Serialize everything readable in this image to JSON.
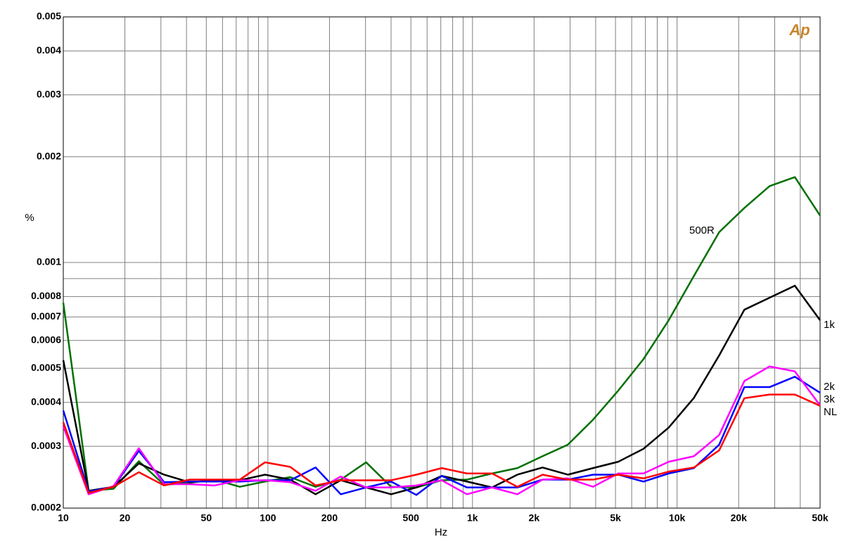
{
  "chart_data": {
    "type": "line",
    "logo": "Ap",
    "ylabel": "%",
    "xlabel": "Hz",
    "annotation": "500R",
    "log_x": true,
    "log_y": true,
    "grid": true,
    "xlim": [
      10,
      50000
    ],
    "ylim": [
      0.0002,
      0.005
    ],
    "xticks": [
      10,
      20,
      {
        "value": 30,
        "label": null
      },
      {
        "value": 40,
        "label": null
      },
      50,
      {
        "value": 60,
        "label": null
      },
      {
        "value": 70,
        "label": null
      },
      {
        "value": 80,
        "label": null
      },
      {
        "value": 90,
        "label": null
      },
      100,
      200,
      {
        "value": 300,
        "label": null
      },
      {
        "value": 400,
        "label": null
      },
      500,
      {
        "value": 600,
        "label": null
      },
      {
        "value": 700,
        "label": null
      },
      {
        "value": 800,
        "label": null
      },
      {
        "value": 900,
        "label": null
      },
      {
        "value": 1000,
        "label": "1k"
      },
      {
        "value": 2000,
        "label": "2k"
      },
      {
        "value": 3000,
        "label": null
      },
      {
        "value": 4000,
        "label": null
      },
      {
        "value": 5000,
        "label": "5k"
      },
      {
        "value": 6000,
        "label": null
      },
      {
        "value": 7000,
        "label": null
      },
      {
        "value": 8000,
        "label": null
      },
      {
        "value": 9000,
        "label": null
      },
      {
        "value": 10000,
        "label": "10k"
      },
      {
        "value": 20000,
        "label": "20k"
      },
      {
        "value": 30000,
        "label": null
      },
      {
        "value": 40000,
        "label": null
      },
      {
        "value": 50000,
        "label": "50k"
      }
    ],
    "yticks": [
      0.0002,
      0.0003,
      0.0004,
      0.0005,
      0.0006,
      0.0007,
      0.0008,
      {
        "value": 0.0009,
        "label": null
      },
      0.001,
      0.002,
      0.003,
      0.004,
      0.005
    ],
    "x": [
      10,
      13.3,
      17.6,
      23.4,
      31.1,
      41.3,
      54.9,
      72.9,
      96.8,
      128.6,
      171,
      227,
      302,
      400,
      532,
      707,
      939,
      1247,
      1657,
      2200,
      2924,
      3884,
      5158,
      6852,
      9100,
      12090,
      16060,
      21330,
      28330,
      37640,
      50000
    ],
    "series": [
      {
        "name": "500R",
        "color": "#007000",
        "values": [
          0.000768,
          0.000224,
          0.000227,
          0.000272,
          0.000233,
          0.000236,
          0.000241,
          0.00023,
          0.000238,
          0.000245,
          0.00023,
          0.000241,
          0.00027,
          0.00023,
          0.000229,
          0.00024,
          0.000241,
          0.000251,
          0.00026,
          0.000281,
          0.000303,
          0.000357,
          0.000432,
          0.000531,
          0.000685,
          0.000916,
          0.00122,
          0.00143,
          0.00165,
          0.00175,
          0.00136
        ]
      },
      {
        "name": "1k",
        "color": "#000000",
        "values": [
          0.000527,
          0.000224,
          0.00023,
          0.000268,
          0.000249,
          0.000237,
          0.00024,
          0.00024,
          0.000249,
          0.000241,
          0.000219,
          0.00024,
          0.000229,
          0.000219,
          0.000229,
          0.000247,
          0.000238,
          0.000229,
          0.000249,
          0.000261,
          0.000249,
          0.00026,
          0.000271,
          0.000295,
          0.000339,
          0.000412,
          0.000544,
          0.000734,
          0.000794,
          0.000859,
          0.000685
        ]
      },
      {
        "name": "2k",
        "color": "#0000ff",
        "values": [
          0.000379,
          0.000223,
          0.00023,
          0.000291,
          0.000237,
          0.000238,
          0.000238,
          0.000238,
          0.00024,
          0.00024,
          0.000261,
          0.000219,
          0.000229,
          0.000238,
          0.000218,
          0.000247,
          0.000229,
          0.000229,
          0.000229,
          0.000241,
          0.000241,
          0.000249,
          0.000249,
          0.000238,
          0.000251,
          0.00026,
          0.000303,
          0.000442,
          0.000442,
          0.000473,
          0.000426
        ]
      },
      {
        "name": "3k",
        "color": "#ff00ff",
        "values": [
          0.000342,
          0.000219,
          0.000231,
          0.000296,
          0.000234,
          0.000234,
          0.000232,
          0.00024,
          0.00024,
          0.000237,
          0.000224,
          0.000246,
          0.000229,
          0.000229,
          0.000232,
          0.00024,
          0.000219,
          0.000229,
          0.000219,
          0.000241,
          0.000243,
          0.00023,
          0.000251,
          0.000251,
          0.000271,
          0.000281,
          0.000323,
          0.00046,
          0.000506,
          0.00049,
          0.000392
        ]
      },
      {
        "name": "NL",
        "color": "#ff0000",
        "values": [
          0.000351,
          0.000221,
          0.00023,
          0.000253,
          0.000232,
          0.000241,
          0.000241,
          0.000241,
          0.00027,
          0.000262,
          0.000232,
          0.00024,
          0.00024,
          0.00024,
          0.000249,
          0.00026,
          0.000251,
          0.000251,
          0.00023,
          0.000249,
          0.000241,
          0.000241,
          0.000249,
          0.000243,
          0.000254,
          0.000261,
          0.000292,
          0.000411,
          0.000421,
          0.000421,
          0.000391
        ]
      }
    ]
  }
}
